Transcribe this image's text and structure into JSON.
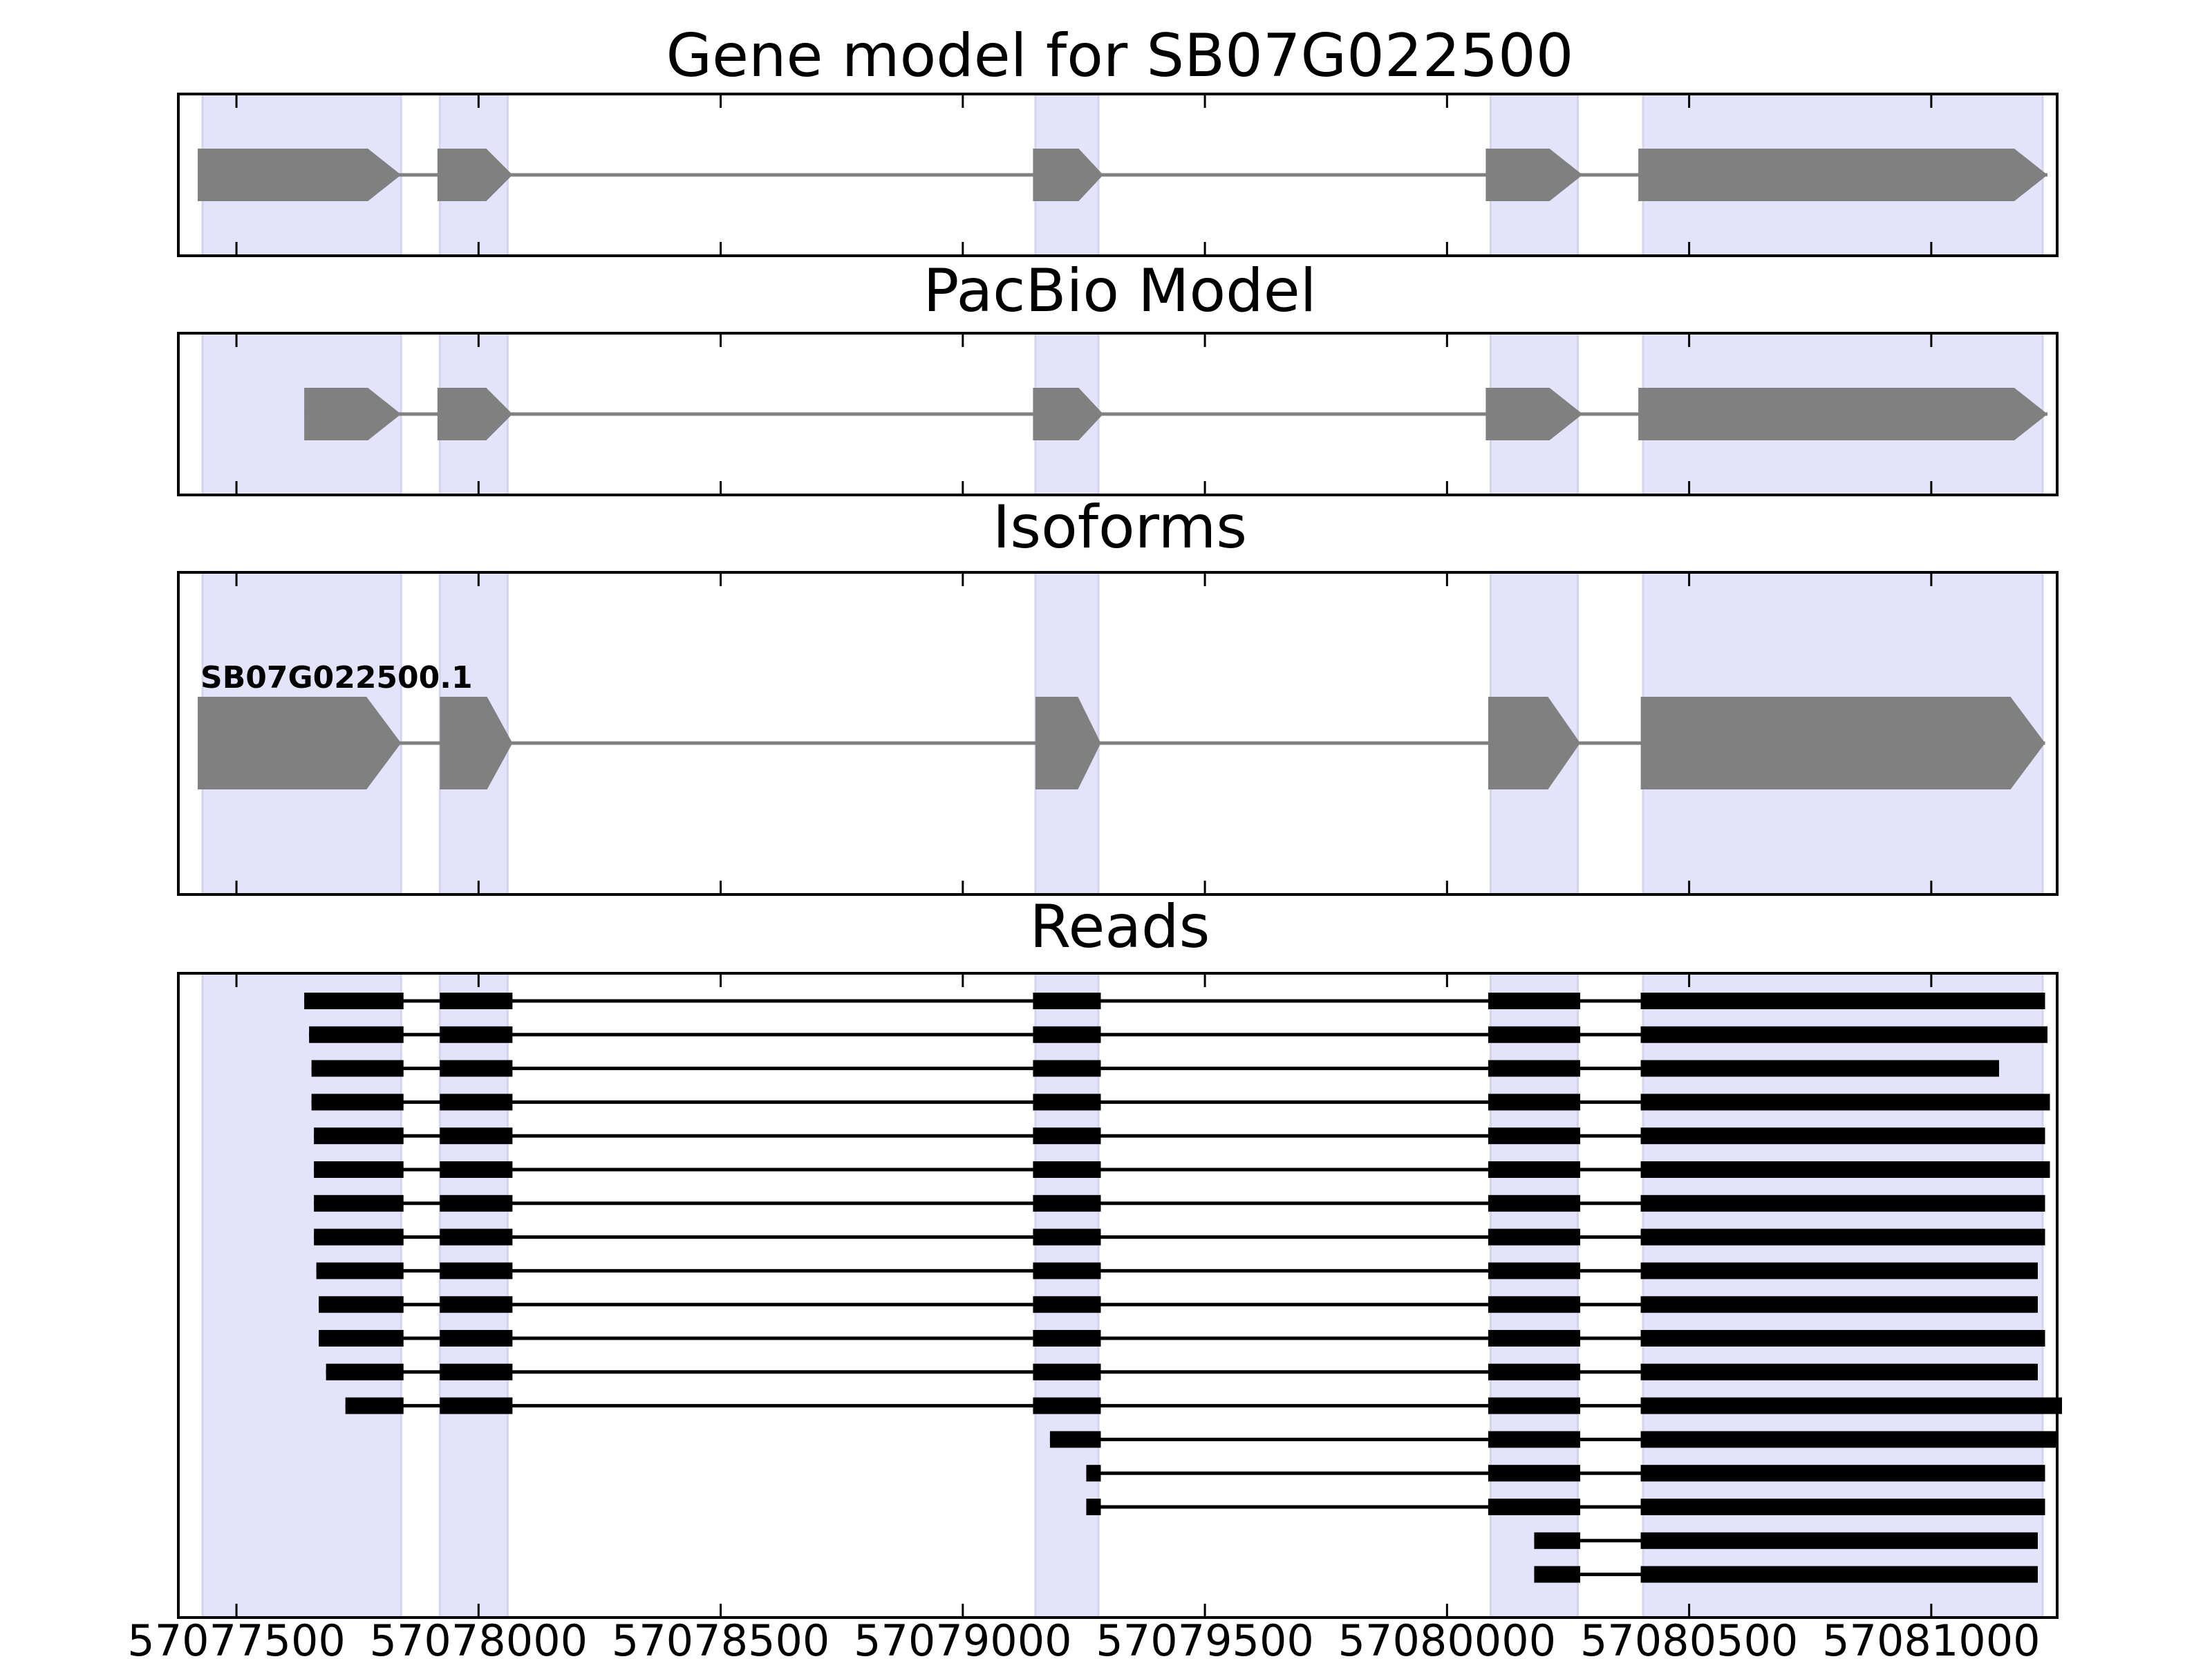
{
  "chart_data": [
    {
      "type": "gene_model",
      "title": "Gene model for SB07G022500",
      "exons": [
        [
          57077420,
          57077840
        ],
        [
          57077915,
          57078070
        ],
        [
          57079145,
          57079290
        ],
        [
          57080080,
          57080280
        ],
        [
          57080395,
          57081240
        ]
      ],
      "strand": "+",
      "color": "#808080"
    },
    {
      "type": "gene_model",
      "title": "PacBio Model",
      "exons": [
        [
          57077640,
          57077840
        ],
        [
          57077915,
          57078070
        ],
        [
          57079145,
          57079290
        ],
        [
          57080080,
          57080280
        ],
        [
          57080395,
          57081240
        ]
      ],
      "strand": "+",
      "color": "#808080"
    },
    {
      "type": "gene_model",
      "title": "Isoforms",
      "isoforms": [
        {
          "name": "SB07G022500.1",
          "exons": [
            [
              57077420,
              57077840
            ],
            [
              57077920,
              57078070
            ],
            [
              57079150,
              57079285
            ],
            [
              57080085,
              57080275
            ],
            [
              57080400,
              57081235
            ]
          ]
        }
      ],
      "color": "#808080"
    },
    {
      "type": "reads",
      "title": "Reads",
      "reads": [
        [
          [
            57077640,
            57077845
          ],
          [
            57077920,
            57078070
          ],
          [
            57079145,
            57079285
          ],
          [
            57080085,
            57080275
          ],
          [
            57080400,
            57081235
          ]
        ],
        [
          [
            57077650,
            57077845
          ],
          [
            57077920,
            57078070
          ],
          [
            57079145,
            57079285
          ],
          [
            57080085,
            57080275
          ],
          [
            57080400,
            57081240
          ]
        ],
        [
          [
            57077655,
            57077845
          ],
          [
            57077920,
            57078070
          ],
          [
            57079145,
            57079285
          ],
          [
            57080085,
            57080275
          ],
          [
            57080400,
            57081140
          ]
        ],
        [
          [
            57077655,
            57077845
          ],
          [
            57077920,
            57078070
          ],
          [
            57079145,
            57079285
          ],
          [
            57080085,
            57080275
          ],
          [
            57080400,
            57081245
          ]
        ],
        [
          [
            57077660,
            57077845
          ],
          [
            57077920,
            57078070
          ],
          [
            57079145,
            57079285
          ],
          [
            57080085,
            57080275
          ],
          [
            57080400,
            57081235
          ]
        ],
        [
          [
            57077660,
            57077845
          ],
          [
            57077920,
            57078070
          ],
          [
            57079145,
            57079285
          ],
          [
            57080085,
            57080275
          ],
          [
            57080400,
            57081245
          ]
        ],
        [
          [
            57077660,
            57077845
          ],
          [
            57077920,
            57078070
          ],
          [
            57079145,
            57079285
          ],
          [
            57080085,
            57080275
          ],
          [
            57080400,
            57081235
          ]
        ],
        [
          [
            57077660,
            57077845
          ],
          [
            57077920,
            57078070
          ],
          [
            57079145,
            57079285
          ],
          [
            57080085,
            57080275
          ],
          [
            57080400,
            57081235
          ]
        ],
        [
          [
            57077665,
            57077845
          ],
          [
            57077920,
            57078070
          ],
          [
            57079145,
            57079285
          ],
          [
            57080085,
            57080275
          ],
          [
            57080400,
            57081220
          ]
        ],
        [
          [
            57077670,
            57077845
          ],
          [
            57077920,
            57078070
          ],
          [
            57079145,
            57079285
          ],
          [
            57080085,
            57080275
          ],
          [
            57080400,
            57081220
          ]
        ],
        [
          [
            57077670,
            57077845
          ],
          [
            57077920,
            57078070
          ],
          [
            57079145,
            57079285
          ],
          [
            57080085,
            57080275
          ],
          [
            57080400,
            57081235
          ]
        ],
        [
          [
            57077685,
            57077845
          ],
          [
            57077920,
            57078070
          ],
          [
            57079145,
            57079285
          ],
          [
            57080085,
            57080275
          ],
          [
            57080400,
            57081220
          ]
        ],
        [
          [
            57077725,
            57077845
          ],
          [
            57077920,
            57078070
          ],
          [
            57079145,
            57079285
          ],
          [
            57080085,
            57080275
          ],
          [
            57080400,
            57081270
          ]
        ],
        [
          [
            57079180,
            57079285
          ],
          [
            57080085,
            57080275
          ],
          [
            57080400,
            57081260
          ]
        ],
        [
          [
            57079255,
            57079285
          ],
          [
            57080085,
            57080275
          ],
          [
            57080400,
            57081235
          ]
        ],
        [
          [
            57079255,
            57079285
          ],
          [
            57080085,
            57080275
          ],
          [
            57080400,
            57081235
          ]
        ],
        [
          [
            57080180,
            57080275
          ],
          [
            57080400,
            57081220
          ]
        ],
        [
          [
            57080180,
            57080275
          ],
          [
            57080400,
            57081220
          ]
        ]
      ]
    }
  ],
  "highlight_regions": [
    [
      57077430,
      57077840
    ],
    [
      57077920,
      57078060
    ],
    [
      57079150,
      57079280
    ],
    [
      57080090,
      57080270
    ],
    [
      57080405,
      57081230
    ]
  ],
  "x_axis": {
    "xlim": [
      57077380,
      57081260
    ],
    "ticks": [
      57077500,
      57078000,
      57078500,
      57079000,
      57079500,
      57080000,
      57080500,
      57081000
    ],
    "tick_labels": [
      "57077500",
      "57078000",
      "57078500",
      "57079000",
      "57079500",
      "57080000",
      "57080500",
      "57081000"
    ]
  },
  "colors": {
    "highlight": "#e3e3fb",
    "highlight_edge": "#d4d4ee",
    "model": "#808080",
    "reads": "#000000"
  }
}
